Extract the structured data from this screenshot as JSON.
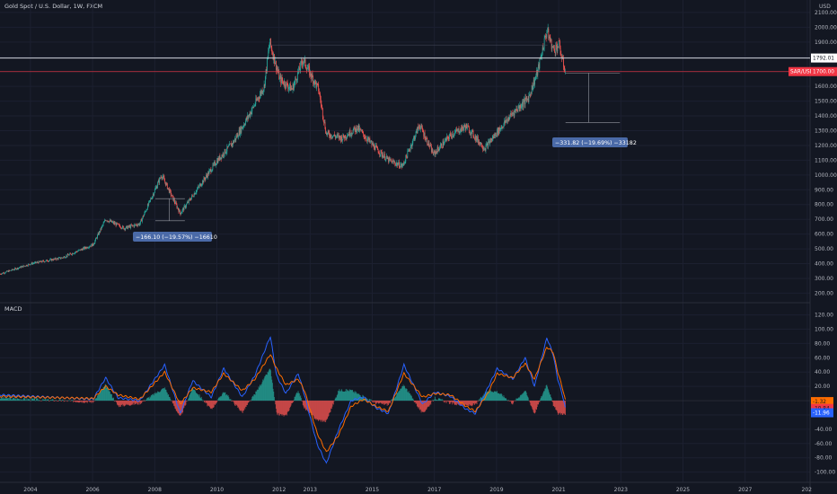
{
  "header": {
    "title": "Gold Spot / U.S. Dollar, 1W, FXCM",
    "currency": "USD"
  },
  "indicator": {
    "label": "MACD"
  },
  "colors": {
    "background": "#131722",
    "up": "#26a69a",
    "down": "#ef5350",
    "macd_line": "#2962ff",
    "signal_line": "#ff6d00",
    "hist_pos": "#26a69a",
    "hist_neg": "#ef5350",
    "measure_box": "#4a6aa8",
    "hline_white": "#d1d4dc",
    "hline_red": "#f23645"
  },
  "price_tags": {
    "white_line": "1792.01",
    "red_line_left": "SAR/USD",
    "red_line_right": "1700.00"
  },
  "macd_tags": {
    "orange": "-1.32",
    "red": "-10.84",
    "blue": "-11.96"
  },
  "measurements": [
    {
      "text": "−166.10 (−19.57%) −16610"
    },
    {
      "text": "−331.82 (−19.69%) −33182"
    }
  ],
  "chart_data": [
    {
      "type": "candlestick",
      "title": "Gold Spot / U.S. Dollar, 1W, FXCM",
      "x_ticks": [
        "2004",
        "2006",
        "2008",
        "2010",
        "2012",
        "2013",
        "2015",
        "2017",
        "2019",
        "2021",
        "2023",
        "2025",
        "2027",
        "202"
      ],
      "y_ticks": [
        "2100.00",
        "2000.00",
        "1900.00",
        "1800.00",
        "1700.00",
        "1600.00",
        "1500.00",
        "1400.00",
        "1300.00",
        "1200.00",
        "1100.00",
        "1000.00",
        "900.00",
        "800.00",
        "700.00",
        "600.00",
        "500.00",
        "400.00",
        "300.00",
        "200.00"
      ],
      "ylim": [
        160,
        2130
      ],
      "x": [
        2003.0,
        2004.0,
        2005.0,
        2006.0,
        2006.4,
        2007.0,
        2007.5,
        2008.2,
        2008.8,
        2009.5,
        2010.0,
        2010.5,
        2011.0,
        2011.5,
        2011.68,
        2012.0,
        2012.4,
        2012.75,
        2013.0,
        2013.25,
        2013.5,
        2014.0,
        2014.5,
        2015.0,
        2015.5,
        2015.95,
        2016.5,
        2016.95,
        2017.5,
        2018.0,
        2018.6,
        2019.0,
        2019.5,
        2020.0,
        2020.3,
        2020.6,
        2020.8,
        2021.0,
        2021.1,
        2021.2
      ],
      "y": [
        330,
        400,
        440,
        530,
        700,
        640,
        670,
        1000,
        740,
        950,
        1100,
        1220,
        1400,
        1600,
        1900,
        1650,
        1580,
        1780,
        1680,
        1580,
        1280,
        1250,
        1320,
        1200,
        1100,
        1060,
        1340,
        1140,
        1270,
        1330,
        1180,
        1290,
        1420,
        1520,
        1700,
        1980,
        1850,
        1880,
        1770,
        1700
      ],
      "series": [
        {
          "name": ""
        }
      ],
      "horizontal_lines": [
        1792.01,
        1700.0
      ],
      "horizontal_segment": 1880
    },
    {
      "type": "line",
      "title": "MACD",
      "y_ticks": [
        "120.00",
        "100.00",
        "80.00",
        "60.00",
        "40.00",
        "20.00",
        "-20.00",
        "-40.00",
        "-60.00",
        "-80.00",
        "-100.00"
      ],
      "ylim": [
        -108,
        127
      ],
      "x": [
        2003.0,
        2004.0,
        2005.0,
        2006.0,
        2006.4,
        2006.8,
        2007.5,
        2008.3,
        2008.8,
        2009.2,
        2009.8,
        2010.2,
        2010.8,
        2011.2,
        2011.7,
        2011.9,
        2012.2,
        2012.6,
        2012.8,
        2013.2,
        2013.5,
        2013.9,
        2014.3,
        2014.7,
        2015.1,
        2015.5,
        2016.0,
        2016.6,
        2017.0,
        2017.5,
        2018.0,
        2018.3,
        2018.7,
        2019.0,
        2019.5,
        2019.9,
        2020.2,
        2020.6,
        2020.8,
        2020.95,
        2021.1,
        2021.2
      ],
      "series": [
        {
          "name": "",
          "values": [
            8,
            6,
            4,
            2,
            32,
            4,
            0,
            50,
            -18,
            28,
            5,
            45,
            5,
            35,
            90,
            35,
            10,
            38,
            8,
            -60,
            -88,
            -40,
            0,
            5,
            -10,
            -18,
            50,
            -5,
            12,
            6,
            -12,
            -18,
            18,
            45,
            30,
            60,
            20,
            88,
            65,
            30,
            8,
            -12
          ]
        },
        {
          "name": "",
          "values": [
            6,
            5,
            4,
            3,
            20,
            8,
            2,
            40,
            -5,
            18,
            12,
            38,
            14,
            30,
            65,
            45,
            22,
            30,
            14,
            -45,
            -72,
            -48,
            -8,
            2,
            -8,
            -15,
            38,
            5,
            10,
            8,
            -8,
            -15,
            10,
            38,
            32,
            52,
            30,
            75,
            68,
            40,
            18,
            -1
          ]
        }
      ]
    }
  ]
}
